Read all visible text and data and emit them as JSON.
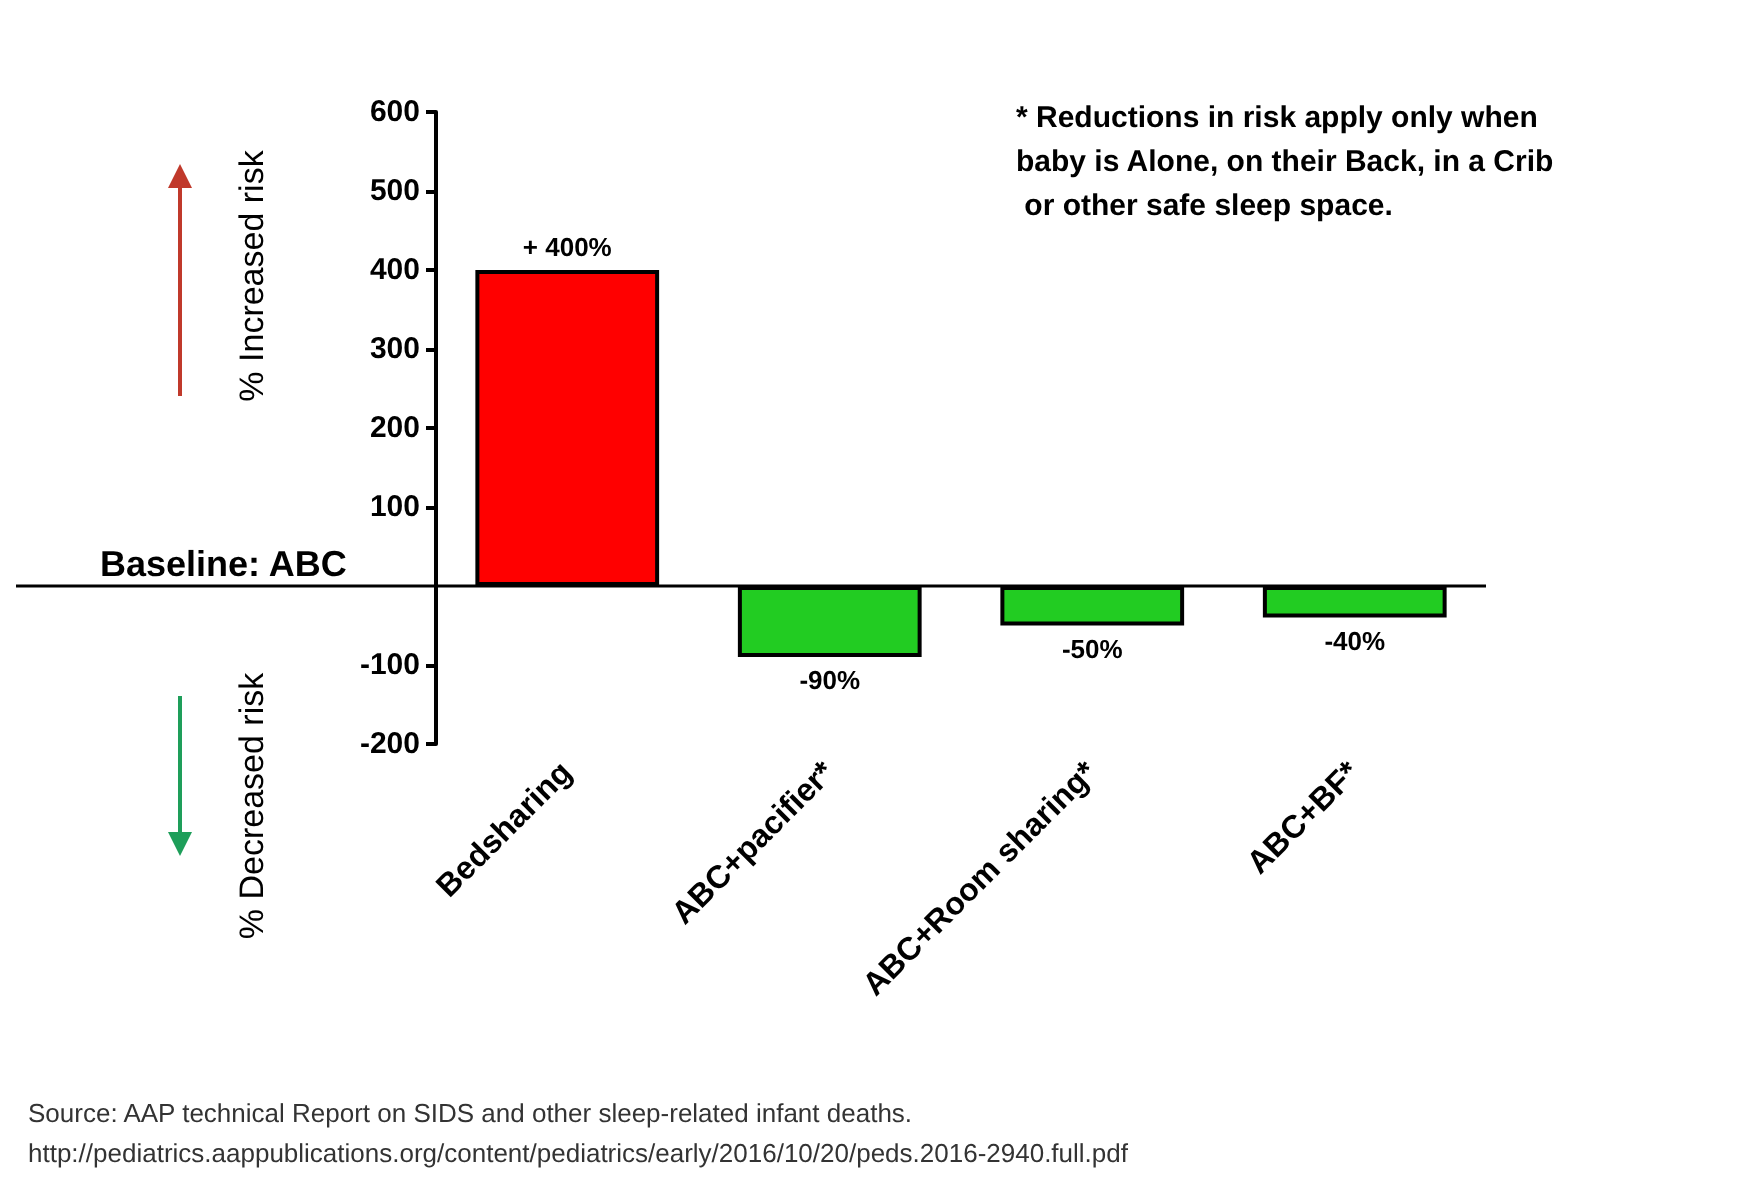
{
  "chart_data": {
    "type": "bar",
    "ylabel": "% Increased risk",
    "categories": [
      "Bedsharing",
      "ABC+pacifier*",
      "ABC+Room sharing*",
      "ABC+BF*"
    ],
    "values": [
      400,
      -90,
      -50,
      -40
    ],
    "colors": [
      "#ff0000",
      "#22cc22",
      "#22cc22",
      "#22cc22"
    ],
    "value_labels": [
      "+ 400%",
      "-90%",
      "-50%",
      "-40%"
    ],
    "ylim": [
      -200,
      600
    ],
    "yticks": [
      -200,
      -100,
      100,
      200,
      300,
      400,
      500,
      600
    ],
    "ref_lines": [
      {
        "axis": "y",
        "value": 0,
        "label": "Baseline: ABC",
        "color": "#000000"
      }
    ],
    "grid": false,
    "annotations": [
      "% Decreased risk",
      "* Reductions in risk apply only when baby is Alone, on their Back, in a Crib or other safe sleep space.",
      "Source: AAP technical Report on SIDS and other sleep-related infant deaths.",
      "http://pediatrics.aappublications.org/content/pediatrics/early/2016/10/20/peds.2016-2940.full.pdf"
    ]
  }
}
